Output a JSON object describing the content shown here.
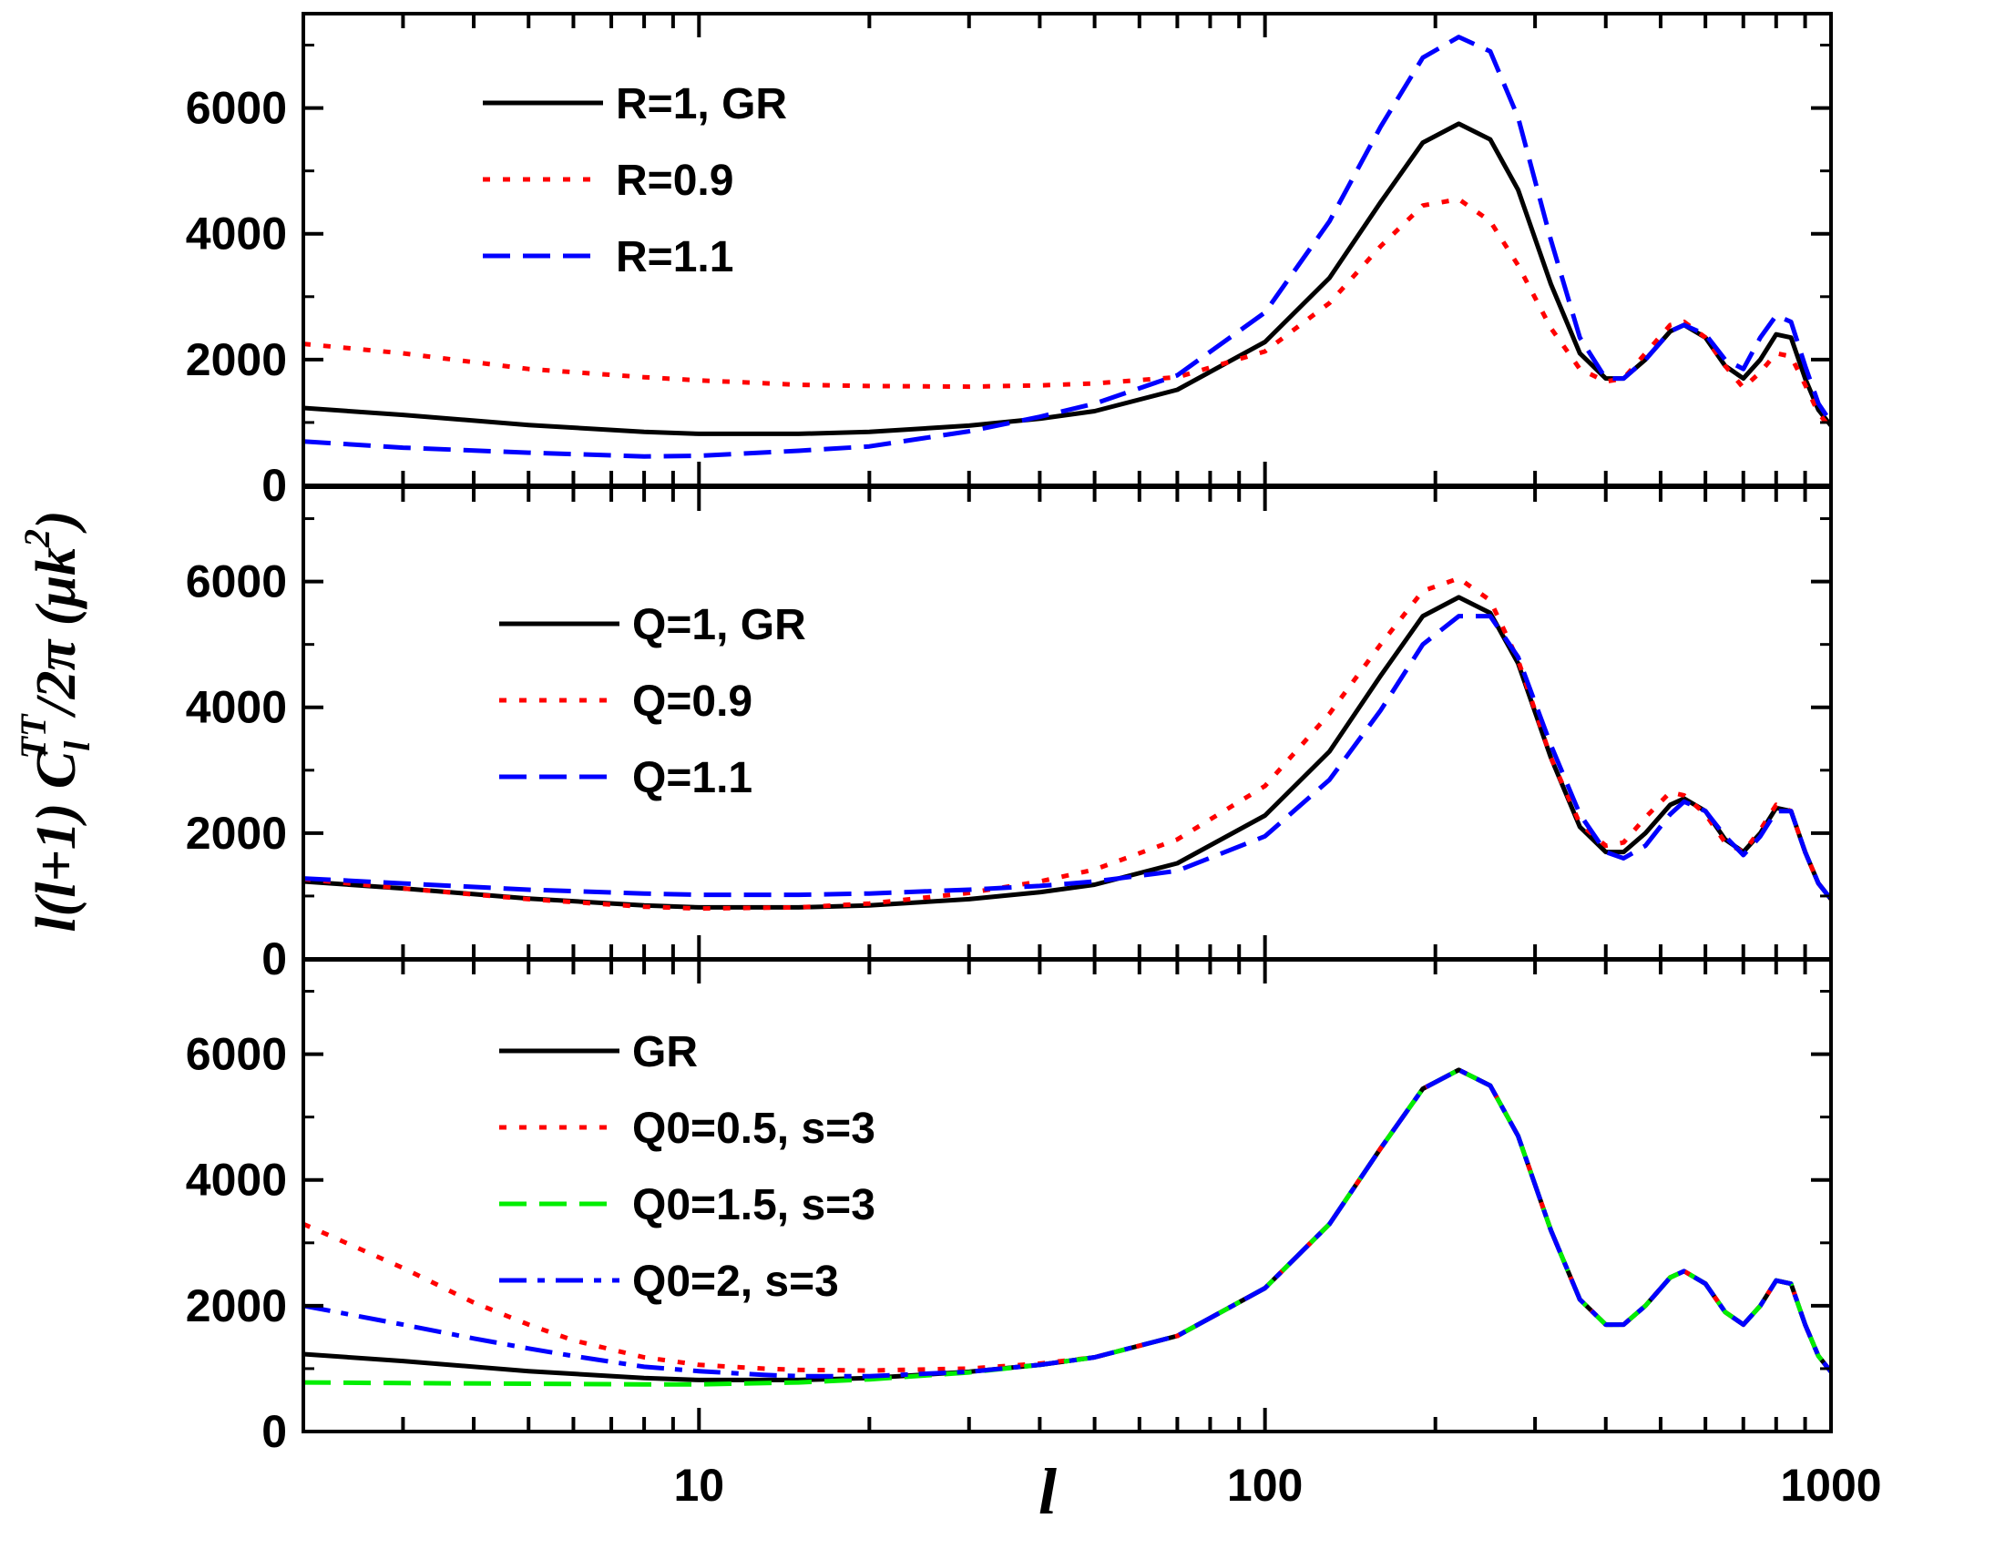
{
  "chart_data": {
    "type": "line",
    "xlabel": "l",
    "ylabel": "l(l+1) C_l^TT/2π (μk²)",
    "ylabel_parts": {
      "a": "l(l+1) C",
      "sub": "l",
      "sup": "TT",
      "b": "/2π (μk",
      "sup2": "2",
      "c": ")"
    },
    "x_scale": "log",
    "xlim": [
      2,
      1000
    ],
    "x_tick_labels": [
      "10",
      "100",
      "1000"
    ],
    "x_ticks": [
      10,
      100,
      1000
    ],
    "ylim": [
      0,
      7500
    ],
    "y_tick_labels": [
      "0",
      "2000",
      "4000",
      "6000"
    ],
    "y_ticks": [
      0,
      2000,
      4000,
      6000
    ],
    "grid": false,
    "legend_position": "upper-left",
    "panels": [
      {
        "series": [
          {
            "name": "R=1, GR",
            "color": "#000000",
            "style": "solid",
            "x": [
              2,
              3,
              5,
              8,
              10,
              15,
              20,
              30,
              40,
              50,
              70,
              100,
              130,
              160,
              190,
              220,
              250,
              280,
              320,
              360,
              400,
              430,
              470,
              520,
              550,
              600,
              650,
              700,
              750,
              800,
              850,
              900,
              950,
              1000
            ],
            "y": [
              1230,
              1120,
              960,
              850,
              820,
              820,
              850,
              950,
              1060,
              1180,
              1520,
              2280,
              3300,
              4500,
              5450,
              5750,
              5500,
              4700,
              3200,
              2100,
              1700,
              1700,
              2000,
              2450,
              2550,
              2350,
              1900,
              1700,
              2000,
              2400,
              2350,
              1700,
              1200,
              950
            ]
          },
          {
            "name": "R=0.9",
            "color": "#ff0000",
            "style": "dotted",
            "x": [
              2,
              3,
              5,
              8,
              10,
              15,
              20,
              30,
              40,
              50,
              70,
              100,
              130,
              160,
              190,
              220,
              250,
              280,
              320,
              360,
              400,
              430,
              470,
              520,
              550,
              600,
              650,
              700,
              750,
              800,
              850,
              900,
              950,
              1000
            ],
            "y": [
              2250,
              2100,
              1850,
              1720,
              1670,
              1600,
              1580,
              1570,
              1590,
              1620,
              1720,
              2130,
              2900,
              3800,
              4450,
              4550,
              4200,
              3500,
              2500,
              1850,
              1650,
              1700,
              2100,
              2550,
              2600,
              2350,
              1900,
              1550,
              1800,
              2100,
              2050,
              1600,
              1150,
              900
            ]
          },
          {
            "name": "R=1.1",
            "color": "#0000ff",
            "style": "dashed",
            "x": [
              2,
              3,
              5,
              8,
              10,
              15,
              20,
              30,
              40,
              50,
              70,
              100,
              130,
              160,
              190,
              220,
              250,
              280,
              320,
              360,
              400,
              430,
              470,
              520,
              550,
              600,
              650,
              700,
              750,
              800,
              850,
              900,
              950,
              1000
            ],
            "y": [
              700,
              600,
              520,
              460,
              470,
              550,
              620,
              860,
              1090,
              1300,
              1750,
              2750,
              4200,
              5700,
              6800,
              7130,
              6900,
              5850,
              3900,
              2350,
              1700,
              1700,
              2000,
              2450,
              2550,
              2400,
              2000,
              1850,
              2350,
              2700,
              2600,
              1900,
              1300,
              1000
            ]
          }
        ]
      },
      {
        "series": [
          {
            "name": "Q=1, GR",
            "color": "#000000",
            "style": "solid",
            "x": [
              2,
              3,
              5,
              8,
              10,
              15,
              20,
              30,
              40,
              50,
              70,
              100,
              130,
              160,
              190,
              220,
              250,
              280,
              320,
              360,
              400,
              430,
              470,
              520,
              550,
              600,
              650,
              700,
              750,
              800,
              850,
              900,
              950,
              1000
            ],
            "y": [
              1230,
              1120,
              960,
              850,
              820,
              820,
              850,
              950,
              1060,
              1180,
              1520,
              2280,
              3300,
              4500,
              5450,
              5750,
              5500,
              4700,
              3200,
              2100,
              1700,
              1700,
              2000,
              2450,
              2550,
              2350,
              1900,
              1700,
              2000,
              2400,
              2350,
              1700,
              1200,
              950
            ]
          },
          {
            "name": "Q=0.9",
            "color": "#ff0000",
            "style": "dotted",
            "x": [
              2,
              3,
              5,
              8,
              10,
              15,
              20,
              30,
              40,
              50,
              70,
              100,
              130,
              160,
              190,
              220,
              250,
              280,
              320,
              360,
              400,
              430,
              470,
              520,
              550,
              600,
              650,
              700,
              750,
              800,
              850,
              900,
              950,
              1000
            ],
            "y": [
              1270,
              1120,
              950,
              830,
              800,
              820,
              880,
              1050,
              1230,
              1420,
              1900,
              2750,
              3900,
              5000,
              5850,
              6050,
              5700,
              4750,
              3200,
              2150,
              1800,
              1850,
              2250,
              2650,
              2600,
              2300,
              1850,
              1700,
              2050,
              2450,
              2350,
              1700,
              1200,
              950
            ]
          },
          {
            "name": "Q=1.1",
            "color": "#0000ff",
            "style": "dashed",
            "x": [
              2,
              3,
              5,
              8,
              10,
              15,
              20,
              30,
              40,
              50,
              70,
              100,
              130,
              160,
              190,
              220,
              250,
              280,
              320,
              360,
              400,
              430,
              470,
              520,
              550,
              600,
              650,
              700,
              750,
              800,
              850,
              900,
              950,
              1000
            ],
            "y": [
              1280,
              1200,
              1100,
              1040,
              1020,
              1020,
              1040,
              1100,
              1160,
              1230,
              1400,
              1950,
              2850,
              3950,
              5000,
              5450,
              5450,
              4800,
              3400,
              2300,
              1700,
              1600,
              1800,
              2300,
              2500,
              2350,
              1950,
              1650,
              1950,
              2350,
              2350,
              1700,
              1200,
              950
            ]
          }
        ]
      },
      {
        "series": [
          {
            "name": "GR",
            "color": "#000000",
            "style": "solid",
            "x": [
              2,
              3,
              5,
              8,
              10,
              15,
              20,
              30,
              40,
              50,
              70,
              100,
              130,
              160,
              190,
              220,
              250,
              280,
              320,
              360,
              400,
              430,
              470,
              520,
              550,
              600,
              650,
              700,
              750,
              800,
              850,
              900,
              950,
              1000
            ],
            "y": [
              1230,
              1120,
              960,
              850,
              820,
              820,
              850,
              950,
              1060,
              1180,
              1520,
              2280,
              3300,
              4500,
              5450,
              5750,
              5500,
              4700,
              3200,
              2100,
              1700,
              1700,
              2000,
              2450,
              2550,
              2350,
              1900,
              1700,
              2000,
              2400,
              2350,
              1700,
              1200,
              950
            ]
          },
          {
            "name": "Q0=0.5, s=3",
            "color": "#ff0000",
            "style": "dotted",
            "x": [
              2,
              3,
              4,
              5,
              6,
              8,
              10,
              13,
              15,
              20,
              30,
              40,
              50,
              70,
              100,
              130,
              160,
              190,
              220,
              250,
              280,
              320,
              360,
              400,
              430,
              470,
              520,
              550,
              600,
              650,
              700,
              750,
              800,
              850,
              900,
              950,
              1000
            ],
            "y": [
              3300,
              2600,
              2050,
              1700,
              1450,
              1180,
              1060,
              1000,
              980,
              970,
              1000,
              1080,
              1180,
              1520,
              2280,
              3300,
              4500,
              5450,
              5750,
              5500,
              4700,
              3200,
              2100,
              1700,
              1700,
              2000,
              2450,
              2550,
              2350,
              1900,
              1700,
              2000,
              2400,
              2350,
              1700,
              1200,
              950
            ]
          },
          {
            "name": "Q0=1.5, s=3",
            "color": "#00ee00",
            "style": "dashed",
            "x": [
              2,
              3,
              5,
              8,
              10,
              15,
              20,
              30,
              40,
              50,
              70,
              100,
              130,
              160,
              190,
              220,
              250,
              280,
              320,
              360,
              400,
              430,
              470,
              520,
              550,
              600,
              650,
              700,
              750,
              800,
              850,
              900,
              950,
              1000
            ],
            "y": [
              780,
              770,
              760,
              750,
              750,
              780,
              830,
              940,
              1060,
              1180,
              1520,
              2280,
              3300,
              4500,
              5450,
              5750,
              5500,
              4700,
              3200,
              2100,
              1700,
              1700,
              2000,
              2450,
              2550,
              2350,
              1900,
              1700,
              2000,
              2400,
              2350,
              1700,
              1200,
              950
            ]
          },
          {
            "name": "Q0=2, s=3",
            "color": "#0000ff",
            "style": "dashdot",
            "x": [
              2,
              3,
              4,
              5,
              6,
              8,
              10,
              13,
              15,
              20,
              30,
              40,
              50,
              70,
              100,
              130,
              160,
              190,
              220,
              250,
              280,
              320,
              360,
              400,
              430,
              470,
              520,
              550,
              600,
              650,
              700,
              750,
              800,
              850,
              900,
              950,
              1000
            ],
            "y": [
              2000,
              1700,
              1480,
              1320,
              1200,
              1030,
              960,
              900,
              880,
              880,
              950,
              1060,
              1180,
              1520,
              2280,
              3300,
              4500,
              5450,
              5750,
              5500,
              4700,
              3200,
              2100,
              1700,
              1700,
              2000,
              2450,
              2550,
              2350,
              1900,
              1700,
              2000,
              2400,
              2350,
              1700,
              1200,
              950
            ]
          }
        ]
      }
    ]
  }
}
